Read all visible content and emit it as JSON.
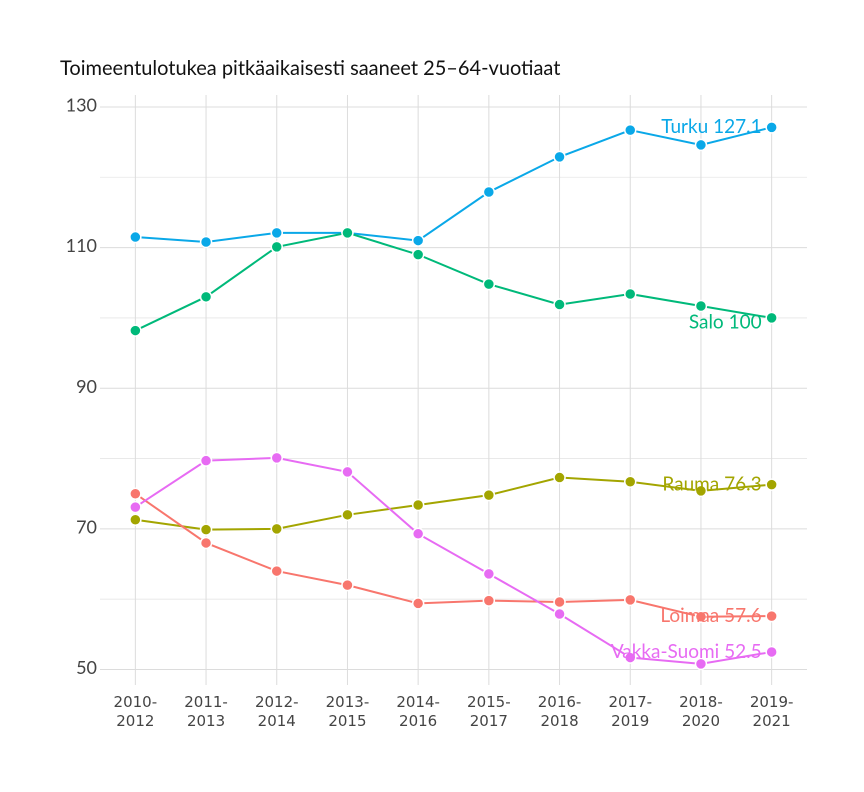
{
  "chart_data": {
    "type": "line",
    "title": "Toimeentulotukea pitkäaikaisesti saaneet 25–64-vuotiaat",
    "categories": [
      "2010-\n2012",
      "2011-\n2013",
      "2012-\n2014",
      "2013-\n2015",
      "2014-\n2016",
      "2015-\n2017",
      "2016-\n2018",
      "2017-\n2019",
      "2018-\n2020",
      "2019-\n2021"
    ],
    "series": [
      {
        "name": "Turku 127.1",
        "color": "#0aa8e8",
        "values": [
          111.5,
          110.8,
          112.1,
          112.1,
          111.0,
          117.9,
          122.9,
          126.7,
          124.6,
          127.1
        ]
      },
      {
        "name": "Salo 100",
        "color": "#00b97a",
        "values": [
          98.2,
          103.0,
          110.1,
          112.1,
          109.0,
          104.8,
          101.9,
          103.4,
          101.7,
          100
        ]
      },
      {
        "name": "Rauma 76.3",
        "color": "#a3a500",
        "values": [
          71.3,
          69.9,
          70.0,
          72.0,
          73.4,
          74.8,
          77.3,
          76.7,
          75.4,
          76.3
        ]
      },
      {
        "name": "Loimaa 57.6",
        "color": "#f8766d",
        "values": [
          75.0,
          68.0,
          64.0,
          62.0,
          59.4,
          59.8,
          59.6,
          59.9,
          57.5,
          57.6
        ]
      },
      {
        "name": "Vakka-Suomi 52.5",
        "color": "#e76bf3",
        "values": [
          73.1,
          79.7,
          80.1,
          78.1,
          69.3,
          63.6,
          57.9,
          51.7,
          50.8,
          52.5
        ]
      }
    ],
    "ylim": [
      47.8,
      131.7
    ],
    "yticks": [
      50,
      70,
      90,
      110,
      130
    ],
    "minor_yticks": [
      60,
      80,
      100,
      120
    ],
    "grid": true
  }
}
